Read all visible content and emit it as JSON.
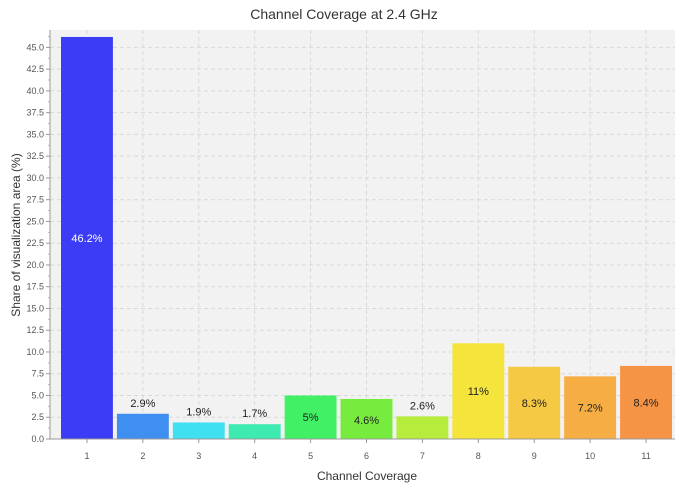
{
  "chart_data": {
    "type": "bar",
    "title": "Channel Coverage at 2.4 GHz",
    "xlabel": "Channel Coverage",
    "ylabel": "Share of visualization area (%)",
    "ylim": [
      0,
      47
    ],
    "yticks": [
      "0.0",
      "2.5",
      "5.0",
      "7.5",
      "10.0",
      "12.5",
      "15.0",
      "17.5",
      "20.0",
      "22.5",
      "25.0",
      "27.5",
      "30.0",
      "32.5",
      "35.0",
      "37.5",
      "40.0",
      "42.5",
      "45.0"
    ],
    "grid": true,
    "categories": [
      "1",
      "2",
      "3",
      "4",
      "5",
      "6",
      "7",
      "8",
      "9",
      "10",
      "11"
    ],
    "values": [
      46.2,
      2.9,
      1.9,
      1.7,
      5.0,
      4.6,
      2.6,
      11.0,
      8.3,
      7.2,
      8.4
    ],
    "labels": [
      "46.2%",
      "2.9%",
      "1.9%",
      "1.7%",
      "5%",
      "4.6%",
      "2.6%",
      "11%",
      "8.3%",
      "7.2%",
      "8.4%"
    ],
    "colors": [
      "#3c3cf5",
      "#3f8ff0",
      "#3ee0f2",
      "#3deab0",
      "#41f065",
      "#77ec3f",
      "#b6ec3c",
      "#f4e43c",
      "#f6c944",
      "#f6ad44",
      "#f59444"
    ],
    "label_colors": [
      "#ffffff",
      "#222222",
      "#222222",
      "#222222",
      "#222222",
      "#222222",
      "#222222",
      "#222222",
      "#222222",
      "#222222",
      "#222222"
    ]
  }
}
